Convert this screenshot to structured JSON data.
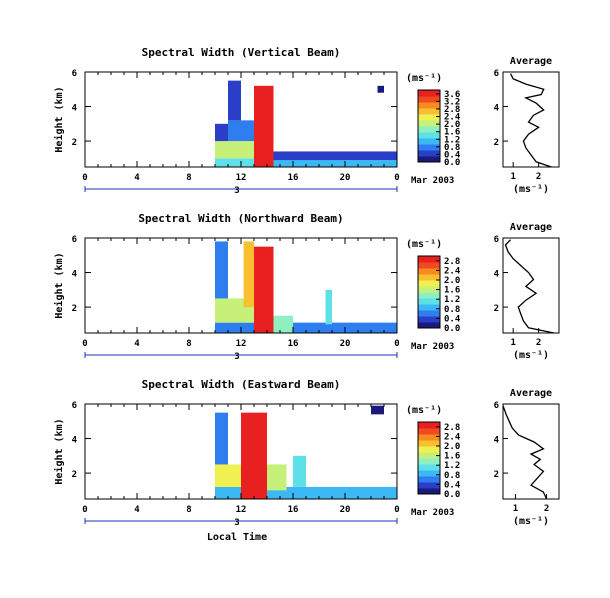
{
  "colors": {
    "colormap": [
      "#1a1a7a",
      "#2a3ec8",
      "#2f7ef0",
      "#3cb8f4",
      "#5ee0e8",
      "#8ef0c0",
      "#c6f07a",
      "#f0f050",
      "#f8c030",
      "#f88a20",
      "#f04a20",
      "#e82020"
    ],
    "line": "#000000",
    "axis_day": "#2233bb"
  },
  "shared_axes": {
    "x_ticks": [
      "0",
      "4",
      "8",
      "12",
      "16",
      "20",
      "0"
    ],
    "day_label": "3",
    "date_label": "Mar 2003",
    "x_bottom_label": "Local Time",
    "ylabel": "Height (km)",
    "y_ticks": [
      "2",
      "4",
      "6"
    ],
    "cbar_unit": "(ms⁻¹)",
    "avg_title": "Average",
    "avg_xlabel": "(ms⁻¹)"
  },
  "chart_data": [
    {
      "type": "heatmap",
      "title": "Spectral Width (Vertical Beam)",
      "xlabel": "",
      "ylabel": "Height (km)",
      "xlim": [
        0,
        24
      ],
      "ylim": [
        0.5,
        6
      ],
      "colorbar": {
        "ticks": [
          "3.6",
          "3.2",
          "2.8",
          "2.4",
          "2.0",
          "1.6",
          "1.2",
          "0.8",
          "0.4",
          "0.0"
        ],
        "range": [
          0,
          3.8
        ]
      },
      "cells": [
        {
          "x": [
            10,
            20
          ],
          "y": [
            0.5,
            1.0
          ],
          "v": 1.4
        },
        {
          "x": [
            10,
            13
          ],
          "y": [
            1.0,
            2.0
          ],
          "v": 2.2
        },
        {
          "x": [
            13,
            14.5
          ],
          "y": [
            0.5,
            5.2
          ],
          "v": 3.6
        },
        {
          "x": [
            14.5,
            24
          ],
          "y": [
            0.5,
            0.9
          ],
          "v": 1.0
        },
        {
          "x": [
            14.5,
            24
          ],
          "y": [
            0.9,
            1.4
          ],
          "v": 0.4
        },
        {
          "x": [
            10,
            11
          ],
          "y": [
            2.0,
            3.0
          ],
          "v": 0.5
        },
        {
          "x": [
            11,
            13
          ],
          "y": [
            2.0,
            3.2
          ],
          "v": 0.8
        },
        {
          "x": [
            11,
            12
          ],
          "y": [
            3.2,
            5.5
          ],
          "v": 0.6
        },
        {
          "x": [
            22.5,
            23
          ],
          "y": [
            4.8,
            5.2
          ],
          "v": 0.3
        }
      ],
      "average": {
        "title": "Average",
        "xlabel": "(ms⁻¹)",
        "xlim": [
          0.6,
          2.8
        ],
        "ylim": [
          0.5,
          6
        ],
        "x_ticks": [
          "1",
          "2"
        ],
        "y_ticks": [
          "2",
          "4",
          "6"
        ],
        "profile": [
          [
            2.5,
            0.5
          ],
          [
            1.9,
            0.8
          ],
          [
            1.7,
            1.2
          ],
          [
            1.5,
            1.6
          ],
          [
            1.4,
            2.0
          ],
          [
            1.6,
            2.4
          ],
          [
            2.0,
            2.8
          ],
          [
            1.6,
            3.1
          ],
          [
            1.8,
            3.5
          ],
          [
            2.2,
            3.8
          ],
          [
            1.9,
            4.2
          ],
          [
            1.5,
            4.5
          ],
          [
            2.1,
            4.7
          ],
          [
            2.2,
            5.0
          ],
          [
            1.5,
            5.3
          ],
          [
            1.0,
            5.6
          ],
          [
            0.9,
            5.9
          ]
        ]
      }
    },
    {
      "type": "heatmap",
      "title": "Spectral Width (Northward Beam)",
      "xlabel": "",
      "ylabel": "Height (km)",
      "xlim": [
        0,
        24
      ],
      "ylim": [
        0.5,
        6
      ],
      "colorbar": {
        "ticks": [
          "2.8",
          "2.4",
          "2.0",
          "1.6",
          "1.2",
          "0.8",
          "0.4",
          "0.0"
        ],
        "range": [
          0,
          3.0
        ]
      },
      "cells": [
        {
          "x": [
            10,
            24
          ],
          "y": [
            0.5,
            1.1
          ],
          "v": 0.6
        },
        {
          "x": [
            10,
            13
          ],
          "y": [
            1.1,
            2.5
          ],
          "v": 1.6
        },
        {
          "x": [
            13,
            14.5
          ],
          "y": [
            0.5,
            5.5
          ],
          "v": 2.8
        },
        {
          "x": [
            12.2,
            13
          ],
          "y": [
            2.0,
            5.8
          ],
          "v": 2.0
        },
        {
          "x": [
            14.5,
            16
          ],
          "y": [
            0.5,
            1.5
          ],
          "v": 1.4
        },
        {
          "x": [
            18.5,
            19
          ],
          "y": [
            1.0,
            3.0
          ],
          "v": 1.0
        },
        {
          "x": [
            10,
            11
          ],
          "y": [
            2.5,
            5.8
          ],
          "v": 0.5
        }
      ],
      "average": {
        "title": "Average",
        "xlabel": "(ms⁻¹)",
        "xlim": [
          0.6,
          2.8
        ],
        "ylim": [
          0.5,
          6
        ],
        "x_ticks": [
          "1",
          "2"
        ],
        "y_ticks": [
          "2",
          "4",
          "6"
        ],
        "profile": [
          [
            2.6,
            0.5
          ],
          [
            1.6,
            0.8
          ],
          [
            1.4,
            1.2
          ],
          [
            1.3,
            1.6
          ],
          [
            1.2,
            2.0
          ],
          [
            1.5,
            2.4
          ],
          [
            1.9,
            2.8
          ],
          [
            1.5,
            3.2
          ],
          [
            1.8,
            3.6
          ],
          [
            1.6,
            4.0
          ],
          [
            1.3,
            4.4
          ],
          [
            1.0,
            4.8
          ],
          [
            0.8,
            5.2
          ],
          [
            0.7,
            5.6
          ],
          [
            0.9,
            5.9
          ]
        ]
      }
    },
    {
      "type": "heatmap",
      "title": "Spectral Width (Eastward Beam)",
      "xlabel": "Local Time",
      "ylabel": "Height (km)",
      "xlim": [
        0,
        24
      ],
      "ylim": [
        0.5,
        6
      ],
      "colorbar": {
        "ticks": [
          "2.8",
          "2.4",
          "2.0",
          "1.6",
          "1.2",
          "0.8",
          "0.4",
          "0.0"
        ],
        "range": [
          0,
          3.0
        ]
      },
      "cells": [
        {
          "x": [
            10,
            24
          ],
          "y": [
            0.5,
            1.2
          ],
          "v": 0.9
        },
        {
          "x": [
            10,
            12
          ],
          "y": [
            1.2,
            2.5
          ],
          "v": 1.8
        },
        {
          "x": [
            12,
            14
          ],
          "y": [
            0.5,
            5.5
          ],
          "v": 2.8
        },
        {
          "x": [
            14,
            15.5
          ],
          "y": [
            1.0,
            2.5
          ],
          "v": 1.6
        },
        {
          "x": [
            16,
            17
          ],
          "y": [
            1.2,
            3.0
          ],
          "v": 1.0
        },
        {
          "x": [
            22,
            23
          ],
          "y": [
            5.4,
            5.9
          ],
          "v": 0.2
        },
        {
          "x": [
            10,
            11
          ],
          "y": [
            2.5,
            5.5
          ],
          "v": 0.6
        }
      ],
      "average": {
        "title": "Average",
        "xlabel": "(ms⁻¹)",
        "xlim": [
          0.6,
          2.4
        ],
        "ylim": [
          0.5,
          6
        ],
        "x_ticks": [
          "1",
          "2"
        ],
        "y_ticks": [
          "2",
          "4",
          "6"
        ],
        "profile": [
          [
            2.0,
            0.5
          ],
          [
            1.9,
            0.9
          ],
          [
            1.5,
            1.3
          ],
          [
            1.7,
            1.7
          ],
          [
            1.9,
            2.1
          ],
          [
            1.6,
            2.5
          ],
          [
            1.8,
            2.8
          ],
          [
            1.5,
            3.1
          ],
          [
            1.9,
            3.4
          ],
          [
            1.6,
            3.8
          ],
          [
            1.1,
            4.2
          ],
          [
            0.9,
            4.6
          ],
          [
            0.8,
            5.0
          ],
          [
            0.7,
            5.4
          ],
          [
            0.6,
            5.9
          ]
        ]
      }
    }
  ]
}
